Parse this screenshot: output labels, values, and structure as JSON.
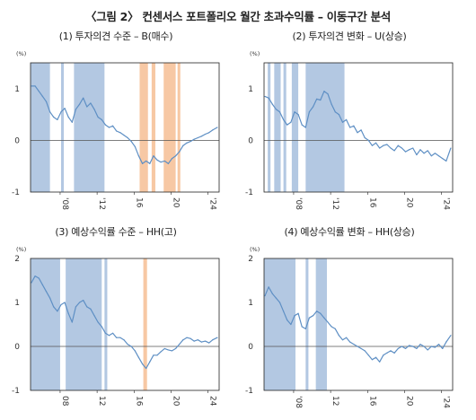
{
  "title": "〈그림 2〉 컨센서스 포트폴리오 월간 초과수익률 – 이동구간 분석",
  "colors": {
    "line": "#5e8fc4",
    "shade_blue": "#b3c8e2",
    "shade_orange": "#f7c8a4",
    "axis": "#222222",
    "zero": "#555555"
  },
  "chart_data": [
    {
      "type": "line",
      "title": "(1) 투자의견 수준 – B(매수)",
      "unit": "(%)",
      "ylim": [
        -1,
        1.5
      ],
      "yticks": [
        -1,
        0,
        1
      ],
      "xlim": [
        2004.8,
        2025.2
      ],
      "xticks": [
        "'08",
        "'12",
        "16",
        "20",
        "'24"
      ],
      "xtick_values": [
        2008,
        2012,
        2016,
        2020,
        2024
      ],
      "shading": [
        {
          "from": 2004.8,
          "to": 2006.9,
          "color": "blue"
        },
        {
          "from": 2008.1,
          "to": 2008.4,
          "color": "blue"
        },
        {
          "from": 2009.5,
          "to": 2012.8,
          "color": "blue"
        },
        {
          "from": 2016.6,
          "to": 2017.5,
          "color": "orange"
        },
        {
          "from": 2017.9,
          "to": 2018.3,
          "color": "orange"
        },
        {
          "from": 2019.2,
          "to": 2020.5,
          "color": "orange"
        },
        {
          "from": 2020.7,
          "to": 2021.0,
          "color": "orange"
        }
      ],
      "series": [
        {
          "x": [
            2004.9,
            2005.3,
            2005.7,
            2006.1,
            2006.5,
            2006.9,
            2007.3,
            2007.7,
            2008.1,
            2008.5,
            2008.9,
            2009.3,
            2009.7,
            2010.1,
            2010.5,
            2010.9,
            2011.3,
            2011.7,
            2012.1,
            2012.5,
            2012.9,
            2013.3,
            2013.7,
            2014.1,
            2014.5,
            2014.9,
            2015.3,
            2015.7,
            2016.1,
            2016.5,
            2016.9,
            2017.3,
            2017.7,
            2018.1,
            2018.5,
            2018.9,
            2019.3,
            2019.7,
            2020.1,
            2020.5,
            2020.9,
            2021.3,
            2021.7,
            2022.1,
            2022.5,
            2022.9,
            2023.3,
            2023.7,
            2024.1,
            2024.5,
            2025.0
          ],
          "values": [
            1.05,
            1.05,
            0.95,
            0.85,
            0.75,
            0.55,
            0.45,
            0.4,
            0.55,
            0.62,
            0.45,
            0.35,
            0.6,
            0.7,
            0.82,
            0.65,
            0.72,
            0.6,
            0.45,
            0.4,
            0.3,
            0.25,
            0.28,
            0.18,
            0.15,
            0.1,
            0.05,
            -0.02,
            -0.12,
            -0.3,
            -0.45,
            -0.4,
            -0.45,
            -0.3,
            -0.38,
            -0.42,
            -0.4,
            -0.45,
            -0.35,
            -0.3,
            -0.22,
            -0.1,
            -0.05,
            -0.02,
            0.02,
            0.05,
            0.08,
            0.12,
            0.15,
            0.2,
            0.25
          ]
        }
      ]
    },
    {
      "type": "line",
      "title": "(2) 투자의견 변화 – U(상승)",
      "unit": "(%)",
      "ylim": [
        -1,
        1.5
      ],
      "yticks": [
        -1,
        0,
        1
      ],
      "xlim": [
        2004.8,
        2025.2
      ],
      "xticks": [
        "'08",
        "'12",
        "16",
        "20",
        "'24"
      ],
      "xtick_values": [
        2008,
        2012,
        2016,
        2020,
        2024
      ],
      "shading": [
        {
          "from": 2005.2,
          "to": 2005.5,
          "color": "blue"
        },
        {
          "from": 2005.9,
          "to": 2006.6,
          "color": "blue"
        },
        {
          "from": 2006.9,
          "to": 2007.2,
          "color": "blue"
        },
        {
          "from": 2007.8,
          "to": 2008.5,
          "color": "blue"
        },
        {
          "from": 2009.3,
          "to": 2013.5,
          "color": "blue"
        }
      ],
      "series": [
        {
          "x": [
            2004.9,
            2005.3,
            2005.7,
            2006.1,
            2006.5,
            2006.9,
            2007.3,
            2007.7,
            2008.1,
            2008.5,
            2008.9,
            2009.3,
            2009.7,
            2010.1,
            2010.5,
            2010.9,
            2011.3,
            2011.7,
            2012.1,
            2012.5,
            2012.9,
            2013.3,
            2013.7,
            2014.1,
            2014.5,
            2014.9,
            2015.3,
            2015.7,
            2016.1,
            2016.5,
            2016.9,
            2017.3,
            2017.7,
            2018.1,
            2018.5,
            2018.9,
            2019.3,
            2019.7,
            2020.1,
            2020.5,
            2020.9,
            2021.3,
            2021.7,
            2022.1,
            2022.5,
            2022.9,
            2023.3,
            2023.7,
            2024.1,
            2024.5,
            2025.0
          ],
          "values": [
            0.85,
            0.82,
            0.7,
            0.6,
            0.55,
            0.4,
            0.3,
            0.35,
            0.55,
            0.5,
            0.3,
            0.25,
            0.55,
            0.65,
            0.8,
            0.78,
            0.95,
            0.9,
            0.7,
            0.55,
            0.5,
            0.35,
            0.4,
            0.25,
            0.28,
            0.15,
            0.2,
            0.05,
            0.0,
            -0.1,
            -0.05,
            -0.15,
            -0.1,
            -0.08,
            -0.15,
            -0.2,
            -0.1,
            -0.15,
            -0.22,
            -0.18,
            -0.15,
            -0.28,
            -0.18,
            -0.25,
            -0.2,
            -0.3,
            -0.25,
            -0.3,
            -0.35,
            -0.4,
            -0.15
          ]
        }
      ]
    },
    {
      "type": "line",
      "title": "(3) 예상수익률 수준 – HH(고)",
      "unit": "(%)",
      "ylim": [
        -1,
        2
      ],
      "yticks": [
        -1,
        0,
        1,
        2
      ],
      "xlim": [
        2004.8,
        2025.2
      ],
      "xticks": [
        "08",
        "12",
        "16",
        "20",
        "24"
      ],
      "xtick_values": [
        2008,
        2012,
        2016,
        2020,
        2024
      ],
      "shading": [
        {
          "from": 2004.8,
          "to": 2008.0,
          "color": "blue"
        },
        {
          "from": 2008.6,
          "to": 2012.5,
          "color": "blue"
        },
        {
          "from": 2012.8,
          "to": 2013.1,
          "color": "blue"
        },
        {
          "from": 2017.0,
          "to": 2017.4,
          "color": "orange"
        }
      ],
      "series": [
        {
          "x": [
            2004.9,
            2005.3,
            2005.7,
            2006.1,
            2006.5,
            2006.9,
            2007.3,
            2007.7,
            2008.1,
            2008.5,
            2008.9,
            2009.3,
            2009.7,
            2010.1,
            2010.5,
            2010.9,
            2011.3,
            2011.7,
            2012.1,
            2012.5,
            2012.9,
            2013.3,
            2013.7,
            2014.1,
            2014.5,
            2014.9,
            2015.3,
            2015.7,
            2016.1,
            2016.5,
            2016.9,
            2017.3,
            2017.7,
            2018.1,
            2018.5,
            2018.9,
            2019.3,
            2019.7,
            2020.1,
            2020.5,
            2020.9,
            2021.3,
            2021.7,
            2022.1,
            2022.5,
            2022.9,
            2023.3,
            2023.7,
            2024.1,
            2024.5,
            2025.0
          ],
          "values": [
            1.45,
            1.6,
            1.55,
            1.4,
            1.25,
            1.1,
            0.9,
            0.8,
            0.95,
            1.0,
            0.75,
            0.55,
            0.9,
            1.0,
            1.05,
            0.9,
            0.85,
            0.7,
            0.55,
            0.45,
            0.3,
            0.25,
            0.3,
            0.2,
            0.2,
            0.15,
            0.05,
            0.0,
            -0.1,
            -0.25,
            -0.4,
            -0.5,
            -0.35,
            -0.2,
            -0.2,
            -0.12,
            -0.05,
            -0.08,
            -0.1,
            -0.05,
            0.05,
            0.15,
            0.2,
            0.18,
            0.12,
            0.15,
            0.1,
            0.12,
            0.08,
            0.15,
            0.2
          ]
        }
      ]
    },
    {
      "type": "line",
      "title": "(4) 예상수익률 변화 – HH(상승)",
      "unit": "(%)",
      "ylim": [
        -1,
        2
      ],
      "yticks": [
        -1,
        0,
        1,
        2
      ],
      "xlim": [
        2004.8,
        2025.2
      ],
      "xticks": [
        "'08",
        "12",
        "16",
        "20",
        "'24"
      ],
      "xtick_values": [
        2008,
        2012,
        2016,
        2020,
        2024
      ],
      "shading": [
        {
          "from": 2004.8,
          "to": 2008.2,
          "color": "blue"
        },
        {
          "from": 2009.3,
          "to": 2009.6,
          "color": "blue"
        },
        {
          "from": 2010.4,
          "to": 2011.6,
          "color": "blue"
        }
      ],
      "series": [
        {
          "x": [
            2004.9,
            2005.3,
            2005.7,
            2006.1,
            2006.5,
            2006.9,
            2007.3,
            2007.7,
            2008.1,
            2008.5,
            2008.9,
            2009.3,
            2009.7,
            2010.1,
            2010.5,
            2010.9,
            2011.3,
            2011.7,
            2012.1,
            2012.5,
            2012.9,
            2013.3,
            2013.7,
            2014.1,
            2014.5,
            2014.9,
            2015.3,
            2015.7,
            2016.1,
            2016.5,
            2016.9,
            2017.3,
            2017.7,
            2018.1,
            2018.5,
            2018.9,
            2019.3,
            2019.7,
            2020.1,
            2020.5,
            2020.9,
            2021.3,
            2021.7,
            2022.1,
            2022.5,
            2022.9,
            2023.3,
            2023.7,
            2024.1,
            2024.5,
            2025.0
          ],
          "values": [
            1.15,
            1.35,
            1.2,
            1.1,
            1.0,
            0.8,
            0.6,
            0.5,
            0.7,
            0.75,
            0.45,
            0.4,
            0.65,
            0.7,
            0.8,
            0.75,
            0.65,
            0.55,
            0.45,
            0.4,
            0.25,
            0.15,
            0.2,
            0.1,
            0.05,
            0.0,
            -0.05,
            -0.1,
            -0.2,
            -0.3,
            -0.25,
            -0.35,
            -0.2,
            -0.15,
            -0.1,
            -0.15,
            -0.05,
            0.0,
            -0.05,
            0.02,
            0.0,
            -0.05,
            0.05,
            0.0,
            -0.08,
            0.0,
            -0.02,
            0.05,
            -0.05,
            0.1,
            0.25
          ]
        }
      ]
    }
  ]
}
